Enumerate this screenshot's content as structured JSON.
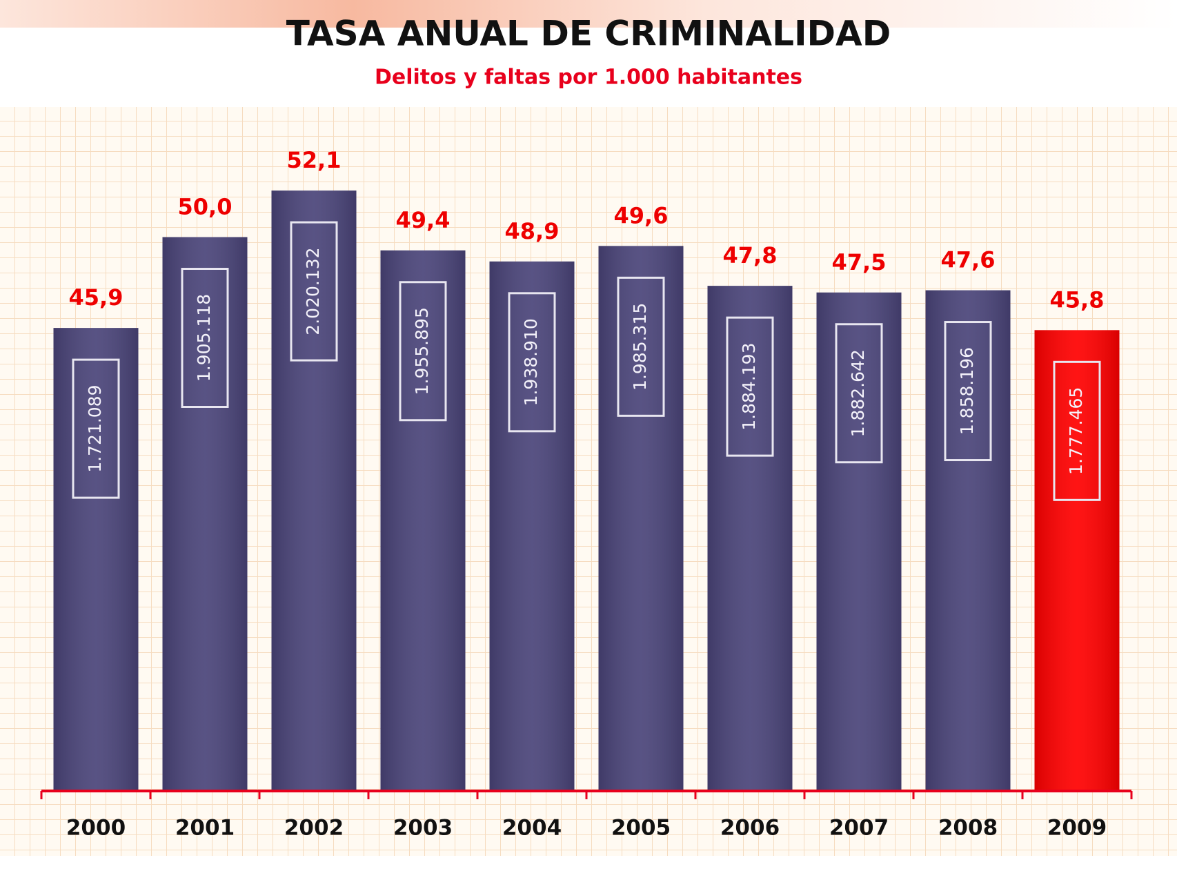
{
  "chart_data": {
    "type": "bar",
    "title": "TASA ANUAL DE CRIMINALIDAD",
    "subtitle": "Delitos y faltas por 1.000 habitantes",
    "categories": [
      "2000",
      "2001",
      "2002",
      "2003",
      "2004",
      "2005",
      "2006",
      "2007",
      "2008",
      "2009"
    ],
    "values": [
      45.9,
      50.0,
      52.1,
      49.4,
      48.9,
      49.6,
      47.8,
      47.5,
      47.6,
      45.8
    ],
    "value_labels": [
      "45,9",
      "50,0",
      "52,1",
      "49,4",
      "48,9",
      "49,6",
      "47,8",
      "47,5",
      "47,6",
      "45,8"
    ],
    "bar_labels": [
      "1.721.089",
      "1.905.118",
      "2.020.132",
      "1.955.895",
      "1.938.910",
      "1.985.315",
      "1.884.193",
      "1.882.642",
      "1.858.196",
      "1.777.465"
    ],
    "colors": [
      "#4a4479",
      "#4a4479",
      "#4a4479",
      "#4a4479",
      "#4a4479",
      "#4a4479",
      "#4a4479",
      "#4a4479",
      "#4a4479",
      "#ff0000"
    ],
    "ylim": [
      25,
      55
    ]
  }
}
